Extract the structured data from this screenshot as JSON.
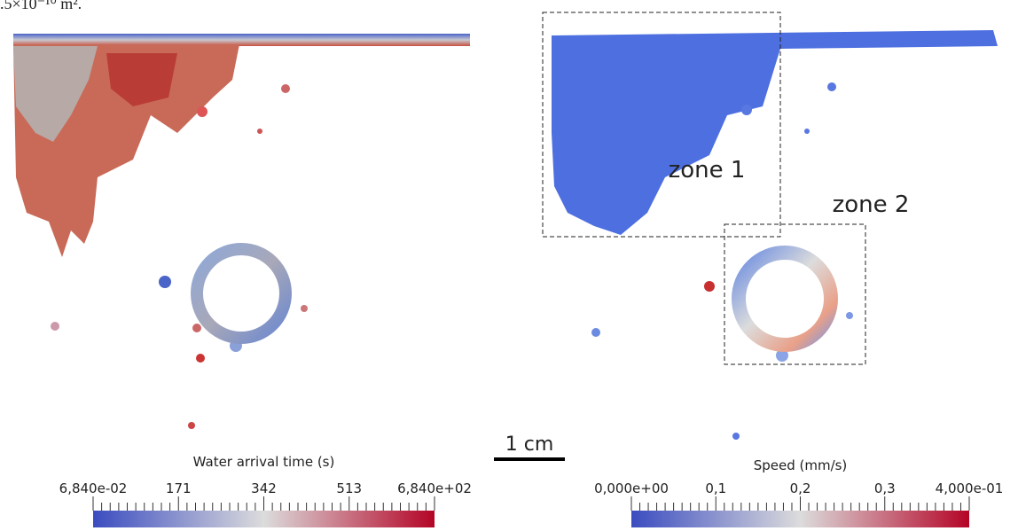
{
  "caption_fragment": ".5×10⁻¹⁰ m².",
  "left_panel": {
    "colorbar": {
      "title": "Water arrival time (s)",
      "labels": [
        "6,840e-02",
        "171",
        "342",
        "513",
        "6,840e+02"
      ]
    }
  },
  "right_panel": {
    "zones": [
      "zone 1",
      "zone 2"
    ],
    "colorbar": {
      "title": "Speed (mm/s)",
      "labels": [
        "0,000e+00",
        "0,1",
        "0,2",
        "0,3",
        "4,000e-01"
      ]
    }
  },
  "scale_bar": "1 cm"
}
